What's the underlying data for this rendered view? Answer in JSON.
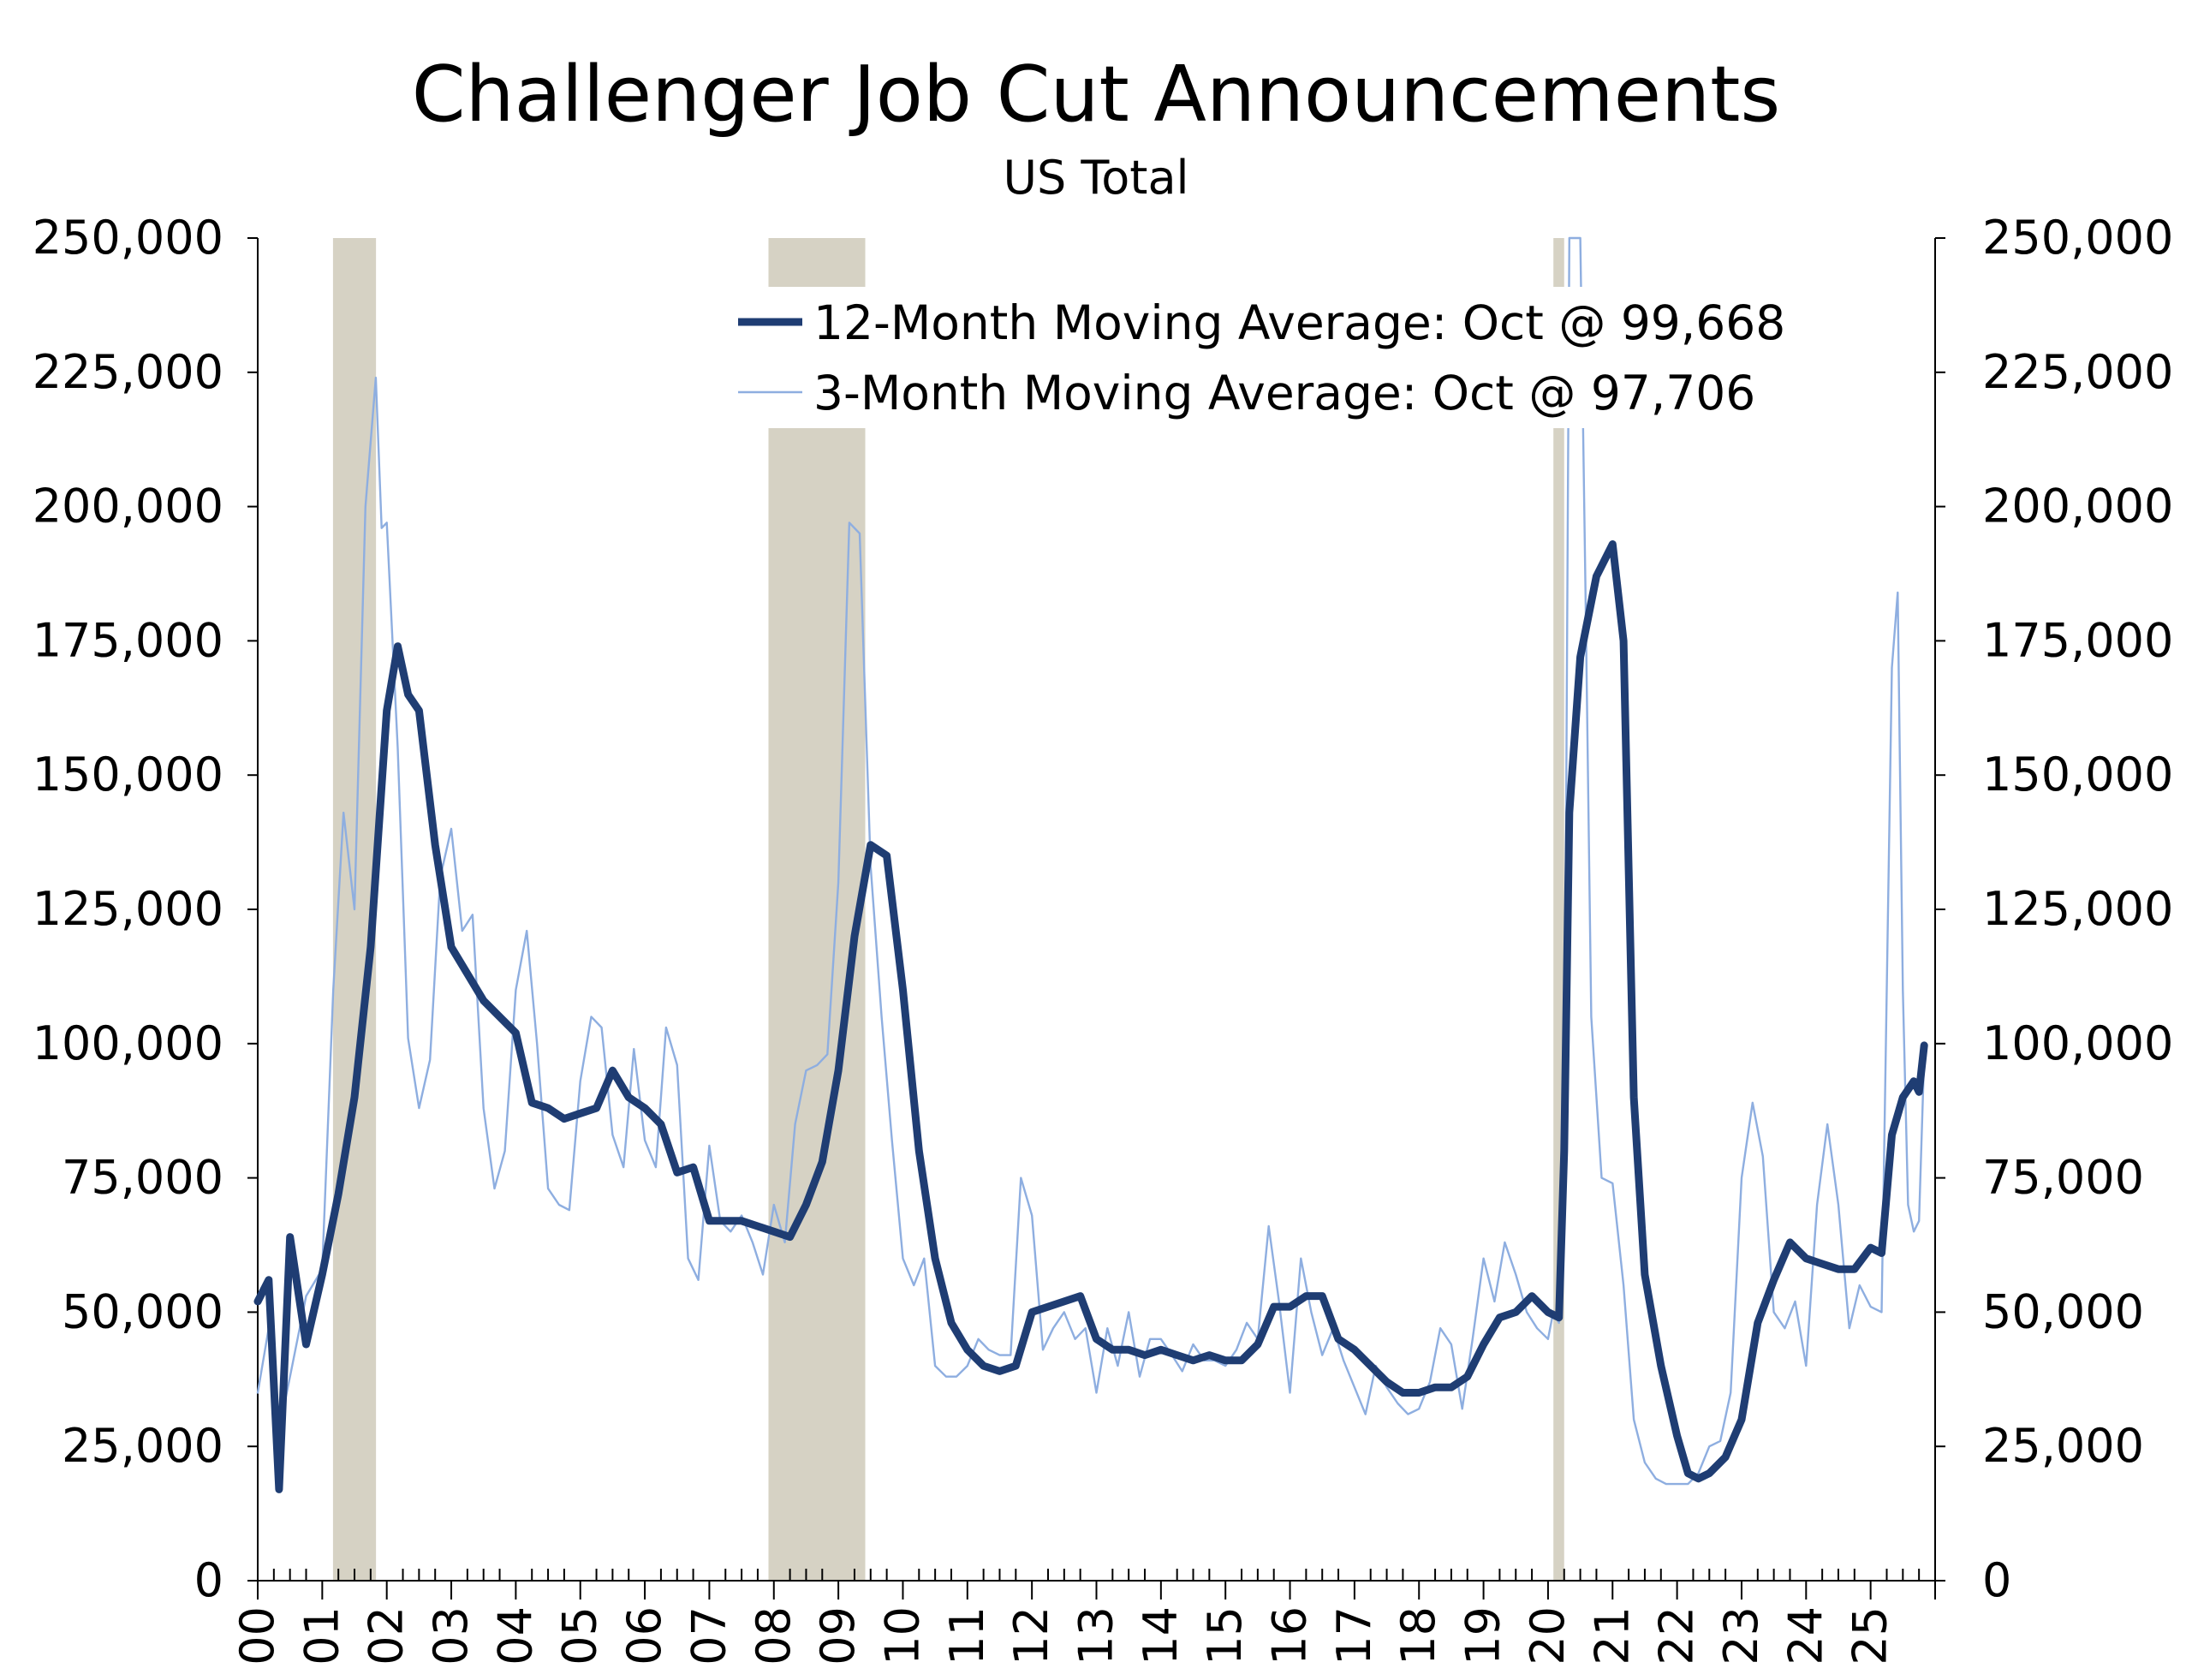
{
  "chart_data": {
    "type": "line",
    "title": "Challenger Job Cut Announcements",
    "subtitle": "US Total",
    "xlabel": "",
    "ylabel": "",
    "ylim": [
      0,
      250000
    ],
    "y_ticks": [
      "0",
      "25,000",
      "50,000",
      "75,000",
      "100,000",
      "125,000",
      "150,000",
      "175,000",
      "200,000",
      "225,000",
      "250,000"
    ],
    "x_tick_labels": [
      "00",
      "01",
      "02",
      "03",
      "04",
      "05",
      "06",
      "07",
      "08",
      "09",
      "10",
      "11",
      "12",
      "13",
      "14",
      "15",
      "16",
      "17",
      "18",
      "19",
      "20",
      "21",
      "22",
      "23",
      "24",
      "25"
    ],
    "x_range_years": [
      2000,
      2026
    ],
    "secondary_y_axis": true,
    "grid": false,
    "legend_position": "top-right",
    "recession_shading": [
      {
        "start": "2001-03",
        "end": "2001-11"
      },
      {
        "start": "2007-12",
        "end": "2009-06"
      },
      {
        "start": "2020-02",
        "end": "2020-04"
      }
    ],
    "recession_color": "#d6d2c4",
    "series": [
      {
        "name": "12-Month Moving Average: Oct @ 99,668",
        "color": "#1f3d73",
        "style": "thick",
        "points": [
          [
            2000.0,
            52000
          ],
          [
            2000.17,
            56000
          ],
          [
            2000.33,
            17000
          ],
          [
            2000.5,
            64000
          ],
          [
            2000.75,
            44000
          ],
          [
            2001.0,
            57000
          ],
          [
            2001.25,
            72000
          ],
          [
            2001.5,
            90000
          ],
          [
            2001.75,
            118000
          ],
          [
            2002.0,
            162000
          ],
          [
            2002.17,
            174000
          ],
          [
            2002.33,
            165000
          ],
          [
            2002.5,
            162000
          ],
          [
            2002.75,
            137000
          ],
          [
            2003.0,
            118000
          ],
          [
            2003.25,
            113000
          ],
          [
            2003.5,
            108000
          ],
          [
            2003.75,
            105000
          ],
          [
            2004.0,
            102000
          ],
          [
            2004.25,
            89000
          ],
          [
            2004.5,
            88000
          ],
          [
            2004.75,
            86000
          ],
          [
            2005.0,
            87000
          ],
          [
            2005.25,
            88000
          ],
          [
            2005.5,
            95000
          ],
          [
            2005.75,
            90000
          ],
          [
            2006.0,
            88000
          ],
          [
            2006.25,
            85000
          ],
          [
            2006.5,
            76000
          ],
          [
            2006.75,
            77000
          ],
          [
            2007.0,
            67000
          ],
          [
            2007.5,
            67000
          ],
          [
            2008.0,
            65000
          ],
          [
            2008.25,
            64000
          ],
          [
            2008.5,
            70000
          ],
          [
            2008.75,
            78000
          ],
          [
            2009.0,
            95000
          ],
          [
            2009.25,
            120000
          ],
          [
            2009.5,
            137000
          ],
          [
            2009.75,
            135000
          ],
          [
            2010.0,
            110000
          ],
          [
            2010.25,
            80000
          ],
          [
            2010.5,
            60000
          ],
          [
            2010.75,
            48000
          ],
          [
            2011.0,
            43000
          ],
          [
            2011.25,
            40000
          ],
          [
            2011.5,
            39000
          ],
          [
            2011.75,
            40000
          ],
          [
            2012.0,
            50000
          ],
          [
            2012.25,
            51000
          ],
          [
            2012.5,
            52000
          ],
          [
            2012.75,
            53000
          ],
          [
            2013.0,
            45000
          ],
          [
            2013.25,
            43000
          ],
          [
            2013.5,
            43000
          ],
          [
            2013.75,
            42000
          ],
          [
            2014.0,
            43000
          ],
          [
            2014.25,
            42000
          ],
          [
            2014.5,
            41000
          ],
          [
            2014.75,
            42000
          ],
          [
            2015.0,
            41000
          ],
          [
            2015.25,
            41000
          ],
          [
            2015.5,
            44000
          ],
          [
            2015.75,
            51000
          ],
          [
            2016.0,
            51000
          ],
          [
            2016.25,
            53000
          ],
          [
            2016.5,
            53000
          ],
          [
            2016.75,
            45000
          ],
          [
            2017.0,
            43000
          ],
          [
            2017.25,
            40000
          ],
          [
            2017.5,
            37000
          ],
          [
            2017.75,
            35000
          ],
          [
            2018.0,
            35000
          ],
          [
            2018.25,
            36000
          ],
          [
            2018.5,
            36000
          ],
          [
            2018.75,
            38000
          ],
          [
            2019.0,
            44000
          ],
          [
            2019.25,
            49000
          ],
          [
            2019.5,
            50000
          ],
          [
            2019.75,
            53000
          ],
          [
            2020.0,
            50000
          ],
          [
            2020.17,
            49000
          ],
          [
            2020.25,
            80000
          ],
          [
            2020.33,
            143000
          ],
          [
            2020.5,
            172000
          ],
          [
            2020.75,
            187000
          ],
          [
            2021.0,
            193000
          ],
          [
            2021.17,
            175000
          ],
          [
            2021.33,
            90000
          ],
          [
            2021.5,
            57000
          ],
          [
            2021.75,
            40000
          ],
          [
            2022.0,
            27000
          ],
          [
            2022.17,
            20000
          ],
          [
            2022.33,
            19000
          ],
          [
            2022.5,
            20000
          ],
          [
            2022.75,
            23000
          ],
          [
            2023.0,
            30000
          ],
          [
            2023.25,
            48000
          ],
          [
            2023.5,
            56000
          ],
          [
            2023.75,
            63000
          ],
          [
            2024.0,
            60000
          ],
          [
            2024.25,
            59000
          ],
          [
            2024.5,
            58000
          ],
          [
            2024.75,
            58000
          ],
          [
            2025.0,
            62000
          ],
          [
            2025.17,
            61000
          ],
          [
            2025.33,
            83000
          ],
          [
            2025.5,
            90000
          ],
          [
            2025.67,
            93000
          ],
          [
            2025.75,
            91000
          ],
          [
            2025.83,
            99668
          ]
        ]
      },
      {
        "name": "3-Month Moving Average: Oct @ 97,706",
        "color": "#8eaee0",
        "style": "thin",
        "points": [
          [
            2000.0,
            35000
          ],
          [
            2000.17,
            47000
          ],
          [
            2000.33,
            28000
          ],
          [
            2000.5,
            38000
          ],
          [
            2000.75,
            53000
          ],
          [
            2001.0,
            58000
          ],
          [
            2001.17,
            110000
          ],
          [
            2001.33,
            143000
          ],
          [
            2001.5,
            125000
          ],
          [
            2001.67,
            200000
          ],
          [
            2001.83,
            224000
          ],
          [
            2001.92,
            196000
          ],
          [
            2002.0,
            197000
          ],
          [
            2002.17,
            155000
          ],
          [
            2002.33,
            101000
          ],
          [
            2002.5,
            88000
          ],
          [
            2002.67,
            97000
          ],
          [
            2002.83,
            131000
          ],
          [
            2003.0,
            140000
          ],
          [
            2003.17,
            121000
          ],
          [
            2003.33,
            124000
          ],
          [
            2003.5,
            88000
          ],
          [
            2003.67,
            73000
          ],
          [
            2003.83,
            80000
          ],
          [
            2004.0,
            110000
          ],
          [
            2004.17,
            121000
          ],
          [
            2004.33,
            100000
          ],
          [
            2004.5,
            73000
          ],
          [
            2004.67,
            70000
          ],
          [
            2004.83,
            69000
          ],
          [
            2005.0,
            93000
          ],
          [
            2005.17,
            105000
          ],
          [
            2005.33,
            103000
          ],
          [
            2005.5,
            83000
          ],
          [
            2005.67,
            77000
          ],
          [
            2005.83,
            99000
          ],
          [
            2006.0,
            82000
          ],
          [
            2006.17,
            77000
          ],
          [
            2006.33,
            103000
          ],
          [
            2006.5,
            96000
          ],
          [
            2006.67,
            60000
          ],
          [
            2006.83,
            56000
          ],
          [
            2007.0,
            81000
          ],
          [
            2007.17,
            67000
          ],
          [
            2007.33,
            65000
          ],
          [
            2007.5,
            68000
          ],
          [
            2007.67,
            63000
          ],
          [
            2007.83,
            57000
          ],
          [
            2008.0,
            70000
          ],
          [
            2008.17,
            63000
          ],
          [
            2008.33,
            85000
          ],
          [
            2008.5,
            95000
          ],
          [
            2008.67,
            96000
          ],
          [
            2008.83,
            98000
          ],
          [
            2009.0,
            130000
          ],
          [
            2009.17,
            197000
          ],
          [
            2009.33,
            195000
          ],
          [
            2009.5,
            133000
          ],
          [
            2009.67,
            105000
          ],
          [
            2009.83,
            82000
          ],
          [
            2010.0,
            60000
          ],
          [
            2010.17,
            55000
          ],
          [
            2010.33,
            60000
          ],
          [
            2010.5,
            40000
          ],
          [
            2010.67,
            38000
          ],
          [
            2010.83,
            38000
          ],
          [
            2011.0,
            40000
          ],
          [
            2011.17,
            45000
          ],
          [
            2011.33,
            43000
          ],
          [
            2011.5,
            42000
          ],
          [
            2011.67,
            42000
          ],
          [
            2011.83,
            75000
          ],
          [
            2012.0,
            68000
          ],
          [
            2012.17,
            43000
          ],
          [
            2012.33,
            47000
          ],
          [
            2012.5,
            50000
          ],
          [
            2012.67,
            45000
          ],
          [
            2012.83,
            47000
          ],
          [
            2013.0,
            35000
          ],
          [
            2013.17,
            47000
          ],
          [
            2013.33,
            40000
          ],
          [
            2013.5,
            50000
          ],
          [
            2013.67,
            38000
          ],
          [
            2013.83,
            45000
          ],
          [
            2014.0,
            45000
          ],
          [
            2014.17,
            42000
          ],
          [
            2014.33,
            39000
          ],
          [
            2014.5,
            44000
          ],
          [
            2014.67,
            41000
          ],
          [
            2014.83,
            41000
          ],
          [
            2015.0,
            40000
          ],
          [
            2015.17,
            43000
          ],
          [
            2015.33,
            48000
          ],
          [
            2015.5,
            45000
          ],
          [
            2015.67,
            66000
          ],
          [
            2015.83,
            52000
          ],
          [
            2016.0,
            35000
          ],
          [
            2016.17,
            60000
          ],
          [
            2016.33,
            50000
          ],
          [
            2016.5,
            42000
          ],
          [
            2016.67,
            47000
          ],
          [
            2016.83,
            41000
          ],
          [
            2017.0,
            36000
          ],
          [
            2017.17,
            31000
          ],
          [
            2017.33,
            40000
          ],
          [
            2017.5,
            36000
          ],
          [
            2017.67,
            33000
          ],
          [
            2017.83,
            31000
          ],
          [
            2018.0,
            32000
          ],
          [
            2018.17,
            37000
          ],
          [
            2018.33,
            47000
          ],
          [
            2018.5,
            44000
          ],
          [
            2018.67,
            32000
          ],
          [
            2018.83,
            45000
          ],
          [
            2019.0,
            60000
          ],
          [
            2019.17,
            52000
          ],
          [
            2019.33,
            63000
          ],
          [
            2019.5,
            57000
          ],
          [
            2019.67,
            50000
          ],
          [
            2019.83,
            47000
          ],
          [
            2020.0,
            45000
          ],
          [
            2020.08,
            50000
          ],
          [
            2020.17,
            48000
          ],
          [
            2020.25,
            78000
          ],
          [
            2020.33,
            250000
          ],
          [
            2020.5,
            250000
          ],
          [
            2020.58,
            185000
          ],
          [
            2020.67,
            105000
          ],
          [
            2020.83,
            75000
          ],
          [
            2021.0,
            74000
          ],
          [
            2021.17,
            55000
          ],
          [
            2021.33,
            30000
          ],
          [
            2021.5,
            22000
          ],
          [
            2021.67,
            19000
          ],
          [
            2021.83,
            18000
          ],
          [
            2022.0,
            18000
          ],
          [
            2022.17,
            18000
          ],
          [
            2022.33,
            20000
          ],
          [
            2022.5,
            25000
          ],
          [
            2022.67,
            26000
          ],
          [
            2022.83,
            35000
          ],
          [
            2023.0,
            75000
          ],
          [
            2023.17,
            89000
          ],
          [
            2023.33,
            79000
          ],
          [
            2023.5,
            50000
          ],
          [
            2023.67,
            47000
          ],
          [
            2023.83,
            52000
          ],
          [
            2024.0,
            40000
          ],
          [
            2024.17,
            70000
          ],
          [
            2024.33,
            85000
          ],
          [
            2024.5,
            70000
          ],
          [
            2024.67,
            47000
          ],
          [
            2024.83,
            55000
          ],
          [
            2025.0,
            51000
          ],
          [
            2025.17,
            50000
          ],
          [
            2025.33,
            170000
          ],
          [
            2025.42,
            184000
          ],
          [
            2025.5,
            110000
          ],
          [
            2025.58,
            70000
          ],
          [
            2025.67,
            65000
          ],
          [
            2025.75,
            67000
          ],
          [
            2025.83,
            97706
          ]
        ]
      }
    ]
  }
}
